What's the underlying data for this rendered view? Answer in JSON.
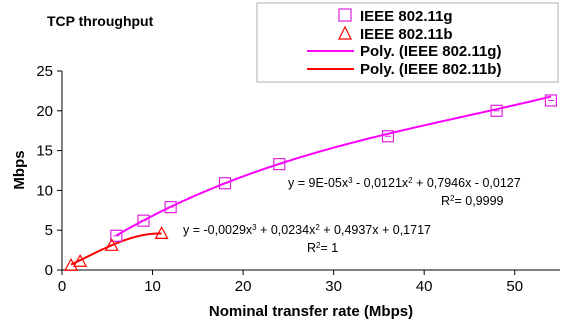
{
  "chart_data": {
    "type": "scatter",
    "title": "TCP throughput",
    "xlabel": "Nominal transfer rate (Mbps)",
    "ylabel": "Mbps",
    "xlim": [
      0,
      55
    ],
    "ylim": [
      0,
      25
    ],
    "x_ticks": [
      0,
      10,
      20,
      30,
      40,
      50
    ],
    "y_ticks": [
      0,
      5,
      10,
      15,
      20,
      25
    ],
    "grid": false,
    "legend_position": "top-right",
    "series": [
      {
        "name": "IEEE 802.11g",
        "marker": "square",
        "color": "#e020e0",
        "x": [
          6,
          9,
          12,
          18,
          24,
          36,
          48,
          54
        ],
        "y": [
          4.3,
          6.2,
          7.9,
          10.9,
          13.3,
          16.8,
          20.0,
          21.3
        ]
      },
      {
        "name": "IEEE 802.11b",
        "marker": "triangle",
        "color": "#ff0000",
        "x": [
          1,
          2,
          5.5,
          11
        ],
        "y": [
          0.6,
          1.1,
          3.1,
          4.6
        ]
      }
    ],
    "trendlines": [
      {
        "name": "Poly. (IEEE 802.11g)",
        "color": "#ff00ff",
        "coefficients": [
          9e-05,
          -0.0121,
          0.7946,
          -0.0127
        ],
        "x_range": [
          6,
          54
        ],
        "equation": "y = 9E-05x",
        "r2": "= 0,9999"
      },
      {
        "name": "Poly. (IEEE 802.11b)",
        "color": "#ff0000",
        "coefficients": [
          -0.0029,
          0.0234,
          0.4937,
          0.1717
        ],
        "x_range": [
          1,
          11
        ],
        "equation": "y = -0,0029x",
        "r2": "= 1"
      }
    ],
    "equation_parts": {
      "g_term2": " - 0,0121x",
      "g_term3": " + 0,7946x - 0,0127",
      "b_term2": " + 0,0234x",
      "b_term3": " + 0,4937x + 0,1717",
      "exp3": "3",
      "exp2": "2",
      "r_letter": "R",
      "r_exp": "2"
    }
  }
}
